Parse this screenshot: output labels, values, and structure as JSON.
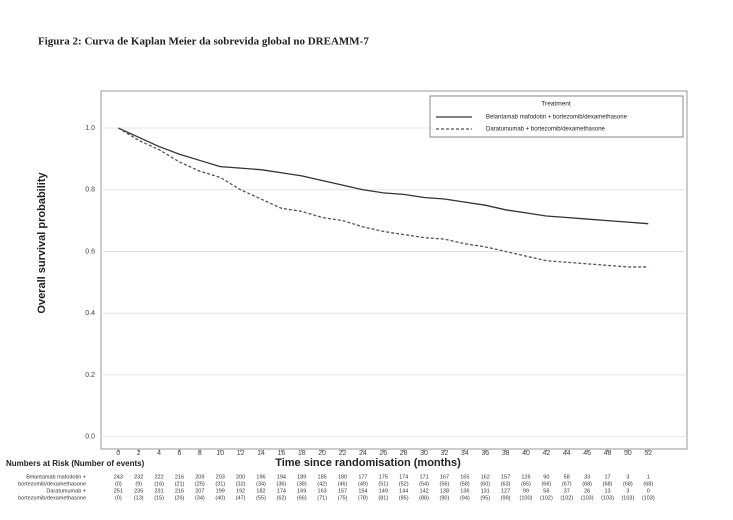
{
  "chart_data": {
    "type": "line",
    "title": "Figura 2: Curva de Kaplan Meier da sobrevida global no DREAMM-7",
    "x_label": "Time since randomisation (months)",
    "y_label": "Overall survival probability",
    "legend_title": "Treatment",
    "x": [
      0,
      2,
      4,
      6,
      8,
      10,
      12,
      14,
      16,
      18,
      20,
      22,
      24,
      26,
      28,
      30,
      32,
      34,
      36,
      38,
      40,
      42,
      44,
      46,
      48,
      50,
      52
    ],
    "series": [
      {
        "name": "Belantamab mafodotin + bortezomib/dexamethasone",
        "color": "#333333",
        "dashed": false,
        "values": [
          1.0,
          0.97,
          0.94,
          0.915,
          0.895,
          0.875,
          0.87,
          0.865,
          0.855,
          0.845,
          0.83,
          0.815,
          0.8,
          0.79,
          0.785,
          0.775,
          0.77,
          0.76,
          0.75,
          0.735,
          0.725,
          0.715,
          0.71,
          0.705,
          0.7,
          0.695,
          0.69
        ]
      },
      {
        "name": "Daratumumab + bortezomib/dexamethasone",
        "color": "#555555",
        "dashed": true,
        "values": [
          1.0,
          0.96,
          0.93,
          0.89,
          0.86,
          0.84,
          0.8,
          0.77,
          0.74,
          0.73,
          0.71,
          0.7,
          0.68,
          0.665,
          0.655,
          0.645,
          0.64,
          0.625,
          0.615,
          0.6,
          0.585,
          0.57,
          0.565,
          0.56,
          0.555,
          0.55,
          0.55
        ]
      }
    ],
    "xlim": [
      -1.7,
      55.8
    ],
    "ylim": [
      -0.04,
      1.12
    ],
    "xticks": [
      0,
      2,
      4,
      6,
      8,
      10,
      12,
      14,
      16,
      18,
      20,
      22,
      24,
      26,
      28,
      30,
      32,
      34,
      36,
      38,
      40,
      42,
      44,
      46,
      48,
      50,
      52
    ],
    "yticks": [
      {
        "value": 0,
        "label": "0.0"
      },
      0.2,
      0.4,
      0.6,
      0.8,
      {
        "value": 1,
        "label": "1.0"
      }
    ],
    "grid": true,
    "legend_position": "top-right",
    "risk_table": {
      "title": "Numbers at Risk (Number of events)",
      "rows": [
        {
          "label": [
            "Belantamab mafodotin +",
            "bortezomib/dexamethasone"
          ],
          "n": [
            243,
            232,
            222,
            216,
            209,
            203,
            200,
            196,
            194,
            189,
            185,
            180,
            177,
            175,
            174,
            171,
            167,
            165,
            162,
            157,
            126,
            90,
            58,
            33,
            17,
            3,
            1
          ],
          "events": [
            "(0)",
            "(9)",
            "(16)",
            "(21)",
            "(25)",
            "(31)",
            "(32)",
            "(34)",
            "(36)",
            "(38)",
            "(42)",
            "(46)",
            "(49)",
            "(51)",
            "(52)",
            "(54)",
            "(56)",
            "(58)",
            "(60)",
            "(63)",
            "(65)",
            "(66)",
            "(67)",
            "(68)",
            "(68)",
            "(68)",
            "(68)"
          ]
        },
        {
          "label": [
            "Daratumumab +",
            "bortezomib/dexamethasone"
          ],
          "n": [
            251,
            235,
            231,
            216,
            207,
            199,
            192,
            182,
            174,
            169,
            163,
            157,
            154,
            149,
            144,
            142,
            138,
            136,
            131,
            127,
            99,
            58,
            37,
            26,
            13,
            3,
            0
          ],
          "events": [
            "(0)",
            "(13)",
            "(15)",
            "(26)",
            "(34)",
            "(40)",
            "(47)",
            "(55)",
            "(62)",
            "(66)",
            "(71)",
            "(75)",
            "(78)",
            "(81)",
            "(85)",
            "(88)",
            "(90)",
            "(94)",
            "(95)",
            "(99)",
            "(100)",
            "(102)",
            "(102)",
            "(103)",
            "(103)",
            "(103)",
            "(103)"
          ]
        }
      ]
    }
  }
}
